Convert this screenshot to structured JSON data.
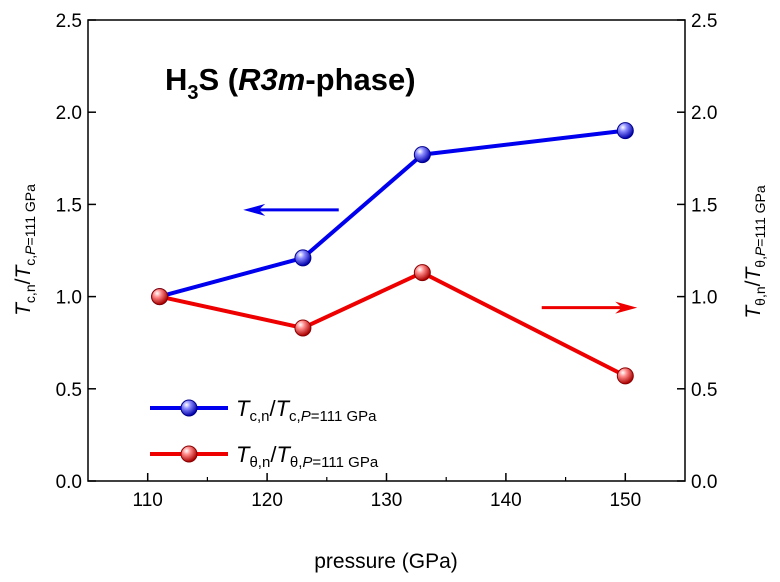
{
  "chart_data": {
    "type": "line",
    "title_parts": {
      "formula_base": "H",
      "formula_sub": "3",
      "formula_tail": "S (",
      "phase_italic": "R3m",
      "phase_rest": "-phase)"
    },
    "xlabel": "pressure (GPa)",
    "xlim": [
      105,
      155
    ],
    "ylim": [
      0,
      2.5
    ],
    "x_ticks": [
      110,
      120,
      130,
      140,
      150
    ],
    "y_ticks": [
      0.0,
      0.5,
      1.0,
      1.5,
      2.0,
      2.5
    ],
    "x_tick_labels": [
      "110",
      "120",
      "130",
      "140",
      "150"
    ],
    "y_tick_labels": [
      "0.0",
      "0.5",
      "1.0",
      "1.5",
      "2.0",
      "2.5"
    ],
    "left_ylabel": {
      "main1": "T",
      "sub1": "c,n",
      "slash": "/",
      "main2": "T",
      "sub2a": "c,",
      "sub2b": "P",
      "sub2c": "=111 GPa"
    },
    "right_ylabel": {
      "main1": "T",
      "sub1": "θ,n",
      "slash": "/",
      "main2": "T",
      "sub2a": "θ,",
      "sub2b": "P",
      "sub2c": "=111 GPa"
    },
    "series": [
      {
        "color": "#0000ee",
        "axis": "left",
        "x": [
          111,
          123,
          133,
          150
        ],
        "y": [
          1.0,
          1.21,
          1.77,
          1.9
        ],
        "legend": {
          "main1": "T",
          "sub1": "c,n",
          "slash": "/",
          "main2": "T",
          "sub2a": "c,",
          "sub2b": "P",
          "sub2c": "=111 GPa"
        }
      },
      {
        "color": "#ee0000",
        "axis": "right",
        "x": [
          111,
          123,
          133,
          150
        ],
        "y": [
          1.0,
          0.83,
          1.13,
          0.57
        ],
        "legend": {
          "main1": "T",
          "sub1": "θ,n",
          "slash": "/",
          "main2": "T",
          "sub2a": "θ,",
          "sub2b": "P",
          "sub2c": "=111 GPa"
        }
      }
    ],
    "arrows": [
      {
        "color": "#0000ee",
        "direction": "left",
        "x_from": 126,
        "x_to": 118,
        "y": 1.47
      },
      {
        "color": "#ee0000",
        "direction": "right",
        "x_from": 143,
        "x_to": 151,
        "y": 0.94
      }
    ],
    "legend_position": "lower-left",
    "grid": false
  }
}
